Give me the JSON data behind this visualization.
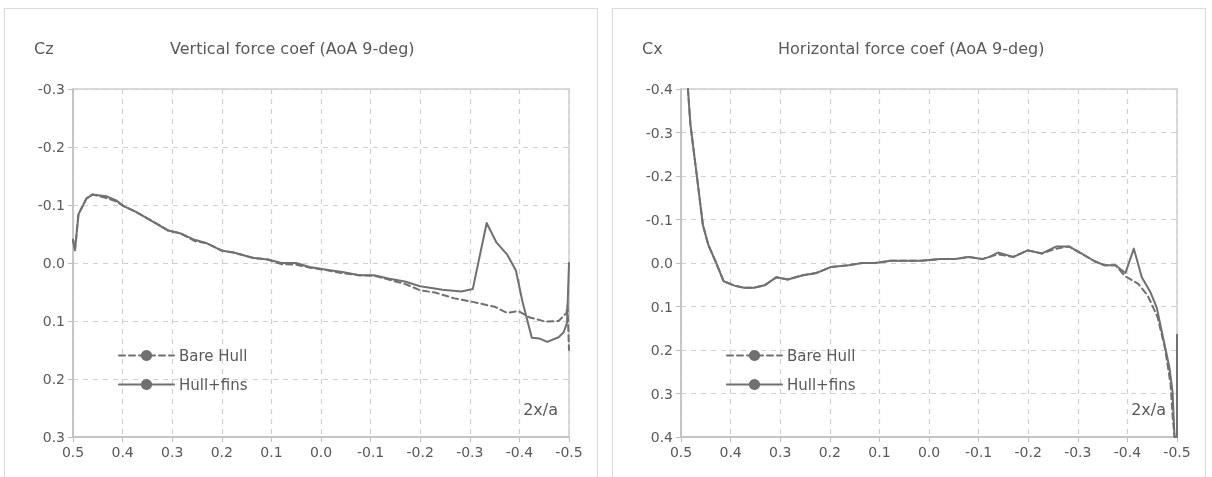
{
  "chart_data": [
    {
      "type": "line",
      "title": "Vertical force coef (AoA 9-deg)",
      "xlabel": "2x/a",
      "ylabel": "Cz",
      "xlim": [
        0.5,
        -0.5
      ],
      "xticks": [
        0.5,
        0.4,
        0.3,
        0.2,
        0.1,
        {
          "value": 0,
          "label": "0.0"
        },
        -0.1,
        -0.2,
        -0.3,
        -0.4,
        -0.5
      ],
      "ylim": [
        0.3,
        -0.3
      ],
      "yticks": [
        -0.3,
        -0.2,
        -0.1,
        {
          "value": 0,
          "label": "0.0"
        },
        0.1,
        0.2,
        0.3
      ],
      "grid": true,
      "legend": "bottom left",
      "marker": "none",
      "series": [
        {
          "name": "Bare Hull",
          "color": "#707070",
          "line_style": "dashed",
          "x": [
            0.5,
            0.496,
            0.489,
            0.473,
            0.461,
            0.433,
            0.413,
            0.398,
            0.375,
            0.352,
            0.308,
            0.283,
            0.255,
            0.23,
            0.199,
            0.176,
            0.138,
            0.107,
            0.08,
            0.05,
            0.023,
            -0.015,
            -0.046,
            -0.077,
            -0.107,
            -0.138,
            -0.169,
            -0.2,
            -0.23,
            -0.269,
            -0.306,
            -0.352,
            -0.375,
            -0.398,
            -0.421,
            -0.452,
            -0.479,
            -0.495,
            -0.497,
            -0.5
          ],
          "values": [
            -0.04,
            -0.022,
            -0.084,
            -0.111,
            -0.118,
            -0.112,
            -0.106,
            -0.098,
            -0.089,
            -0.078,
            -0.056,
            -0.051,
            -0.038,
            -0.034,
            -0.021,
            -0.018,
            -0.009,
            -0.006,
            0.002,
            0.003,
            0.008,
            0.013,
            0.018,
            0.021,
            0.022,
            0.029,
            0.036,
            0.047,
            0.051,
            0.061,
            0.067,
            0.076,
            0.086,
            0.083,
            0.094,
            0.101,
            0.1,
            0.086,
            0.073,
            0.15
          ]
        },
        {
          "name": "Hull+fins",
          "color": "#707070",
          "line_style": "solid",
          "x": [
            0.5,
            0.496,
            0.489,
            0.473,
            0.461,
            0.433,
            0.413,
            0.398,
            0.375,
            0.352,
            0.308,
            0.283,
            0.255,
            0.23,
            0.199,
            0.176,
            0.138,
            0.107,
            0.08,
            0.05,
            0.023,
            -0.015,
            -0.046,
            -0.077,
            -0.107,
            -0.138,
            -0.169,
            -0.2,
            -0.245,
            -0.283,
            -0.306,
            -0.334,
            -0.354,
            -0.375,
            -0.393,
            -0.406,
            -0.425,
            -0.44,
            -0.456,
            -0.479,
            -0.489,
            -0.496,
            -0.5
          ],
          "values": [
            -0.04,
            -0.022,
            -0.084,
            -0.111,
            -0.118,
            -0.115,
            -0.108,
            -0.098,
            -0.089,
            -0.078,
            -0.056,
            -0.051,
            -0.04,
            -0.034,
            -0.021,
            -0.018,
            -0.009,
            -0.006,
            0.0,
            0.0,
            0.007,
            0.012,
            0.016,
            0.021,
            0.021,
            0.027,
            0.032,
            0.04,
            0.046,
            0.049,
            0.045,
            -0.069,
            -0.035,
            -0.015,
            0.013,
            0.066,
            0.129,
            0.13,
            0.136,
            0.128,
            0.12,
            0.103,
            0.0
          ]
        }
      ]
    },
    {
      "type": "line",
      "title": "Horizontal force coef (AoA 9-deg)",
      "xlabel": "2x/a",
      "ylabel": "Cx",
      "xlim": [
        0.5,
        -0.5
      ],
      "xticks": [
        0.5,
        0.4,
        0.3,
        0.2,
        0.1,
        {
          "value": 0,
          "label": "0.0"
        },
        -0.1,
        -0.2,
        -0.3,
        -0.4,
        -0.5
      ],
      "ylim": [
        0.4,
        -0.4
      ],
      "yticks": [
        -0.4,
        -0.3,
        -0.2,
        -0.1,
        {
          "value": 0,
          "label": "0.0"
        },
        0.1,
        0.2,
        0.3,
        0.4
      ],
      "grid": true,
      "legend": "bottom left",
      "marker": "none",
      "series": [
        {
          "name": "Bare Hull",
          "color": "#707070",
          "line_style": "dashed",
          "x": [
            0.486,
            0.481,
            0.468,
            0.456,
            0.445,
            0.429,
            0.414,
            0.392,
            0.373,
            0.353,
            0.331,
            0.308,
            0.285,
            0.254,
            0.227,
            0.197,
            0.162,
            0.135,
            0.108,
            0.078,
            0.016,
            -0.022,
            -0.053,
            -0.08,
            -0.107,
            -0.122,
            -0.139,
            -0.17,
            -0.199,
            -0.228,
            -0.257,
            -0.282,
            -0.307,
            -0.334,
            -0.353,
            -0.376,
            -0.395,
            -0.422,
            -0.441,
            -0.461,
            -0.476,
            -0.487,
            -0.491,
            -0.495
          ],
          "values": [
            -0.4,
            -0.318,
            -0.2,
            -0.088,
            -0.042,
            0.0,
            0.042,
            0.052,
            0.057,
            0.057,
            0.051,
            0.033,
            0.038,
            0.028,
            0.023,
            0.009,
            0.005,
            0.0,
            0.0,
            -0.005,
            -0.005,
            -0.009,
            -0.009,
            -0.014,
            -0.009,
            -0.014,
            -0.02,
            -0.014,
            -0.029,
            -0.022,
            -0.033,
            -0.038,
            -0.022,
            -0.004,
            0.005,
            0.005,
            0.03,
            0.048,
            0.075,
            0.125,
            0.197,
            0.278,
            0.35,
            0.4
          ]
        },
        {
          "name": "Hull+fins",
          "color": "#707070",
          "line_style": "solid",
          "x": [
            0.486,
            0.481,
            0.468,
            0.456,
            0.445,
            0.429,
            0.414,
            0.392,
            0.373,
            0.353,
            0.331,
            0.308,
            0.285,
            0.254,
            0.227,
            0.197,
            0.162,
            0.135,
            0.108,
            0.078,
            0.016,
            -0.022,
            -0.053,
            -0.08,
            -0.107,
            -0.122,
            -0.139,
            -0.17,
            -0.199,
            -0.228,
            -0.257,
            -0.282,
            -0.307,
            -0.334,
            -0.353,
            -0.376,
            -0.396,
            -0.413,
            -0.429,
            -0.446,
            -0.459,
            -0.475,
            -0.485,
            -0.491,
            -0.495,
            -0.5,
            -0.5
          ],
          "values": [
            -0.4,
            -0.318,
            -0.2,
            -0.088,
            -0.042,
            0.0,
            0.042,
            0.052,
            0.057,
            0.057,
            0.051,
            0.033,
            0.038,
            0.028,
            0.023,
            0.009,
            0.005,
            0.0,
            0.0,
            -0.005,
            -0.005,
            -0.009,
            -0.009,
            -0.014,
            -0.009,
            -0.014,
            -0.024,
            -0.014,
            -0.029,
            -0.022,
            -0.038,
            -0.038,
            -0.022,
            -0.004,
            0.005,
            0.005,
            0.023,
            -0.033,
            0.033,
            0.066,
            0.102,
            0.188,
            0.242,
            0.296,
            0.4,
            0.4,
            0.165
          ]
        }
      ]
    }
  ]
}
